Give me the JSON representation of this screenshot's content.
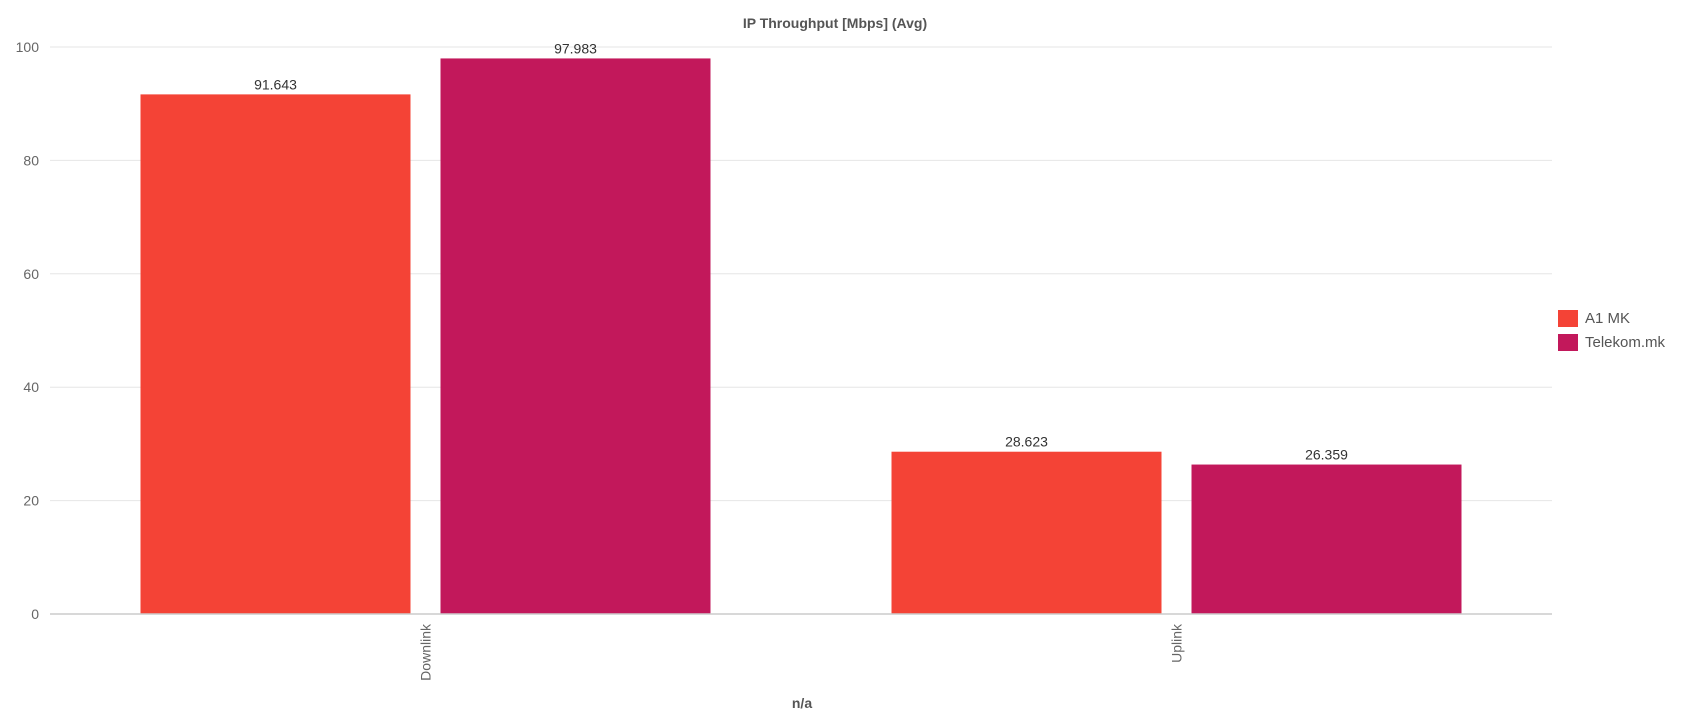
{
  "chart_data": {
    "type": "bar",
    "title": "IP Throughput [Mbps] (Avg)",
    "xlabel": "n/a",
    "ylabel": "",
    "ylim": [
      0,
      100
    ],
    "yticks": [
      0,
      20,
      40,
      60,
      80,
      100
    ],
    "categories": [
      "Downlink",
      "Uplink"
    ],
    "series": [
      {
        "name": "A1 MK",
        "color": "#f44336",
        "values": [
          91.643,
          28.623
        ],
        "labels": [
          "91.643",
          "28.623"
        ]
      },
      {
        "name": "Telekom.mk",
        "color": "#c2185b",
        "values": [
          97.983,
          26.359
        ],
        "labels": [
          "97.983",
          "26.359"
        ]
      }
    ],
    "grid": true,
    "legend_position": "right"
  }
}
